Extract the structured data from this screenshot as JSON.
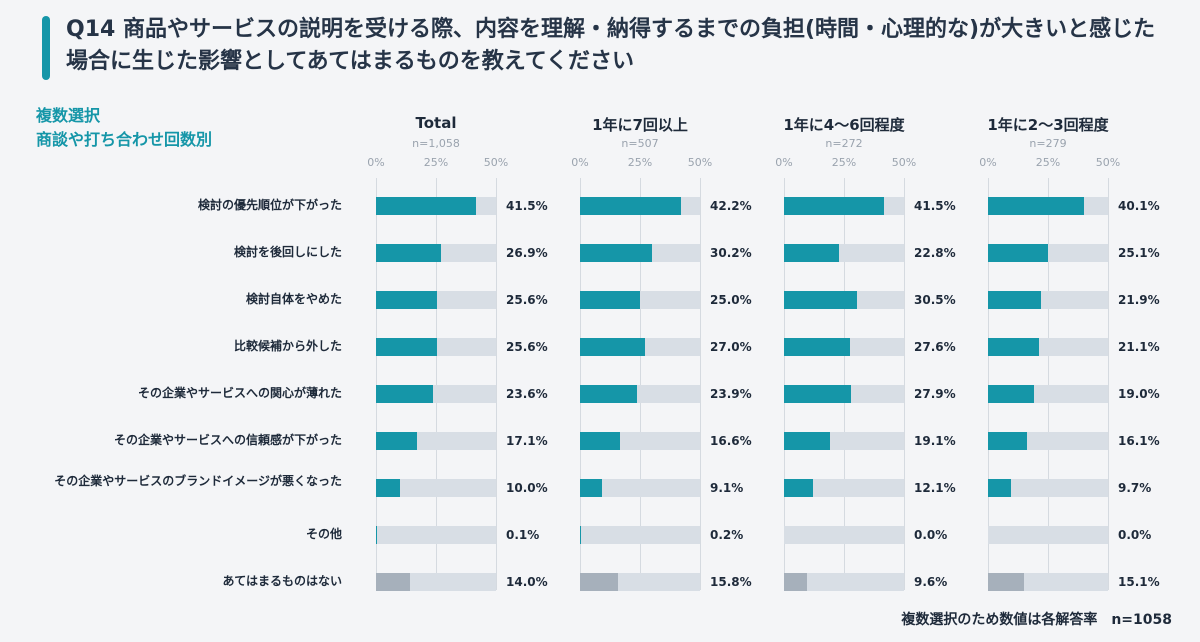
{
  "header": {
    "title": "Q14 商品やサービスの説明を受ける際、内容を理解・納得するまでの負担(時間・心理的な)が大きいと感じた場合に生じた影響としてあてはまるものを教えてください",
    "subtitle_line1": "複数選択",
    "subtitle_line2": "商談や打ち合わせ回数別",
    "accent_color": "#1596a8"
  },
  "footnote": "複数選択のため数値は各解答率　n=1058",
  "chart_data": {
    "type": "bar",
    "orientation": "horizontal",
    "xlim": [
      0,
      50
    ],
    "ticks": [
      "0%",
      "25%",
      "50%"
    ],
    "categories": [
      "検討の優先順位が下がった",
      "検討を後回しにした",
      "検討自体をやめた",
      "比較候補から外した",
      "その企業やサービスへの関心が薄れた",
      "その企業やサービスへの信頼感が下がった",
      "その企業やサービスのブランドイメージが悪くなった",
      "その他",
      "あてはまるものはない"
    ],
    "panels": [
      {
        "name": "Total",
        "n": "n=1,058",
        "values": [
          41.5,
          26.9,
          25.6,
          25.6,
          23.6,
          17.1,
          10.0,
          0.1,
          14.0
        ],
        "labels": [
          "41.5%",
          "26.9%",
          "25.6%",
          "25.6%",
          "23.6%",
          "17.1%",
          "10.0%",
          "0.1%",
          "14.0%"
        ]
      },
      {
        "name": "1年に7回以上",
        "n": "n=507",
        "values": [
          42.2,
          30.2,
          25.0,
          27.0,
          23.9,
          16.6,
          9.1,
          0.2,
          15.8
        ],
        "labels": [
          "42.2%",
          "30.2%",
          "25.0%",
          "27.0%",
          "23.9%",
          "16.6%",
          "9.1%",
          "0.2%",
          "15.8%"
        ]
      },
      {
        "name": "1年に4〜6回程度",
        "n": "n=272",
        "values": [
          41.5,
          22.8,
          30.5,
          27.6,
          27.9,
          19.1,
          12.1,
          0.0,
          9.6
        ],
        "labels": [
          "41.5%",
          "22.8%",
          "30.5%",
          "27.6%",
          "27.9%",
          "19.1%",
          "12.1%",
          "0.0%",
          "9.6%"
        ]
      },
      {
        "name": "1年に2〜3回程度",
        "n": "n=279",
        "values": [
          40.1,
          25.1,
          21.9,
          21.1,
          19.0,
          16.1,
          9.7,
          0.0,
          15.1
        ],
        "labels": [
          "40.1%",
          "25.1%",
          "21.9%",
          "21.1%",
          "19.0%",
          "16.1%",
          "9.7%",
          "0.0%",
          "15.1%"
        ]
      }
    ],
    "colors": {
      "fill": "#1596a8",
      "track": "#d8dee5",
      "none_fill": "#a6b0bb"
    }
  }
}
